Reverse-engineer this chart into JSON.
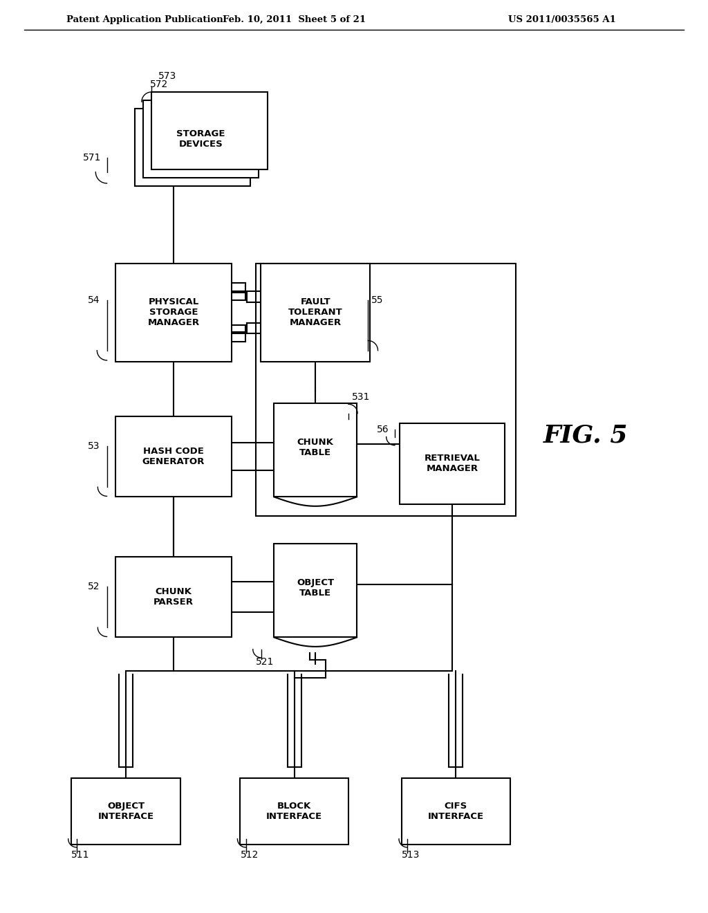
{
  "title_left": "Patent Application Publication",
  "title_mid": "Feb. 10, 2011  Sheet 5 of 21",
  "title_right": "US 2011/0035565 A1",
  "fig_label": "FIG. 5",
  "background": "#ffffff"
}
